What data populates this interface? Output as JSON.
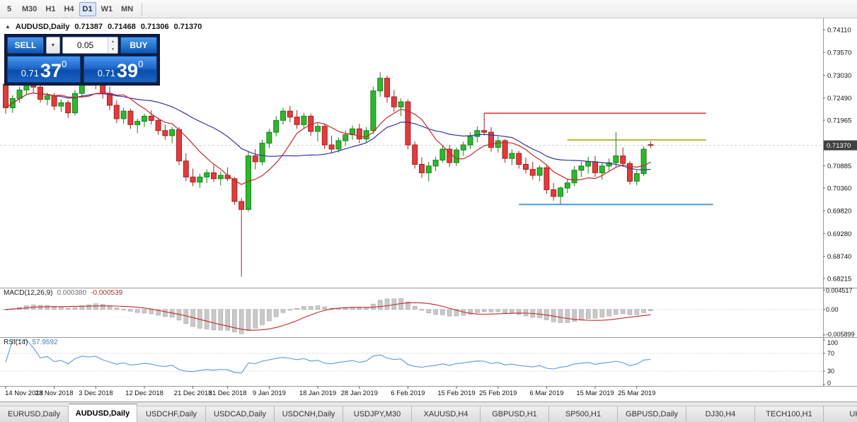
{
  "toolbar": {
    "timeframes": [
      {
        "label": "5",
        "active": false
      },
      {
        "label": "M30",
        "active": false
      },
      {
        "label": "H1",
        "active": false
      },
      {
        "label": "H4",
        "active": false
      },
      {
        "label": "D1",
        "active": true
      },
      {
        "label": "W1",
        "active": false
      },
      {
        "label": "MN",
        "active": false
      }
    ]
  },
  "chart_header": {
    "symbol": "AUDUSD,Daily",
    "open": "0.71387",
    "high": "0.71468",
    "low": "0.71306",
    "close": "0.71370"
  },
  "trade_panel": {
    "sell_label": "SELL",
    "buy_label": "BUY",
    "volume": "0.05",
    "sell_price": {
      "prefix": "0.71",
      "big": "37",
      "sup": "0"
    },
    "buy_price": {
      "prefix": "0.71",
      "big": "39",
      "sup": "0"
    }
  },
  "indicators": {
    "macd": {
      "label": "MACD(12,26,9)",
      "value1": "0.000380",
      "value2": "-0.000539"
    },
    "rsi": {
      "label": "RSI(14)",
      "value": "57.9592"
    }
  },
  "tabs": [
    {
      "label": "EURUSD,Daily",
      "active": false
    },
    {
      "label": "AUDUSD,Daily",
      "active": true
    },
    {
      "label": "USDCHF,Daily",
      "active": false
    },
    {
      "label": "USDCAD,Daily",
      "active": false
    },
    {
      "label": "USDCNH,Daily",
      "active": false
    },
    {
      "label": "USDJPY,M30",
      "active": false
    },
    {
      "label": "XAUUSD,H4",
      "active": false
    },
    {
      "label": "GBPUSD,H1",
      "active": false
    },
    {
      "label": "SP500,H1",
      "active": false
    },
    {
      "label": "GBPUSD,Daily",
      "active": false
    },
    {
      "label": "DJ30,H4",
      "active": false
    },
    {
      "label": "TECH100,H1",
      "active": false
    },
    {
      "label": "UKC",
      "active": false
    }
  ],
  "colors": {
    "bull": "#2db82d",
    "bull_edge": "#1d7f1d",
    "bear": "#e23b3b",
    "bear_edge": "#a32222",
    "ma_fast": "#c62828",
    "ma_slow": "#3434a4",
    "hline_red": "#dd5b5b",
    "hline_olive": "#b5b833",
    "hline_blue": "#4f9bd9",
    "rsi_line": "#5b9bd5",
    "macd_signal": "#c62828",
    "macd_hist": "#c9c9c9",
    "macd_hist_edge": "#9b9b9b",
    "badge_bg": "#404040"
  },
  "chart_data": [
    {
      "type": "candlestick",
      "symbol": "AUDUSD",
      "timeframe": "Daily",
      "y_range": [
        0.68215,
        0.7411
      ],
      "y_ticks": [
        "0.74110",
        "0.73570",
        "0.73030",
        "0.72490",
        "0.71965",
        "0.70885",
        "0.70360",
        "0.69820",
        "0.69280",
        "0.68740",
        "0.68215"
      ],
      "current_price": 0.7137,
      "current_price_label": "0.71370",
      "x_ticks": [
        {
          "label": "14 Nov 2018",
          "i": 0
        },
        {
          "label": "23 Nov 2018",
          "i": 7
        },
        {
          "label": "3 Dec 2018",
          "i": 13
        },
        {
          "label": "12 Dec 2018",
          "i": 20
        },
        {
          "label": "21 Dec 2018",
          "i": 27
        },
        {
          "label": "31 Dec 2018",
          "i": 32
        },
        {
          "label": "9 Jan 2019",
          "i": 38
        },
        {
          "label": "18 Jan 2019",
          "i": 45
        },
        {
          "label": "28 Jan 2019",
          "i": 51
        },
        {
          "label": "6 Feb 2019",
          "i": 58
        },
        {
          "label": "15 Feb 2019",
          "i": 65
        },
        {
          "label": "25 Feb 2019",
          "i": 71
        },
        {
          "label": "6 Mar 2019",
          "i": 78
        },
        {
          "label": "15 Mar 2019",
          "i": 85
        },
        {
          "label": "25 Mar 2019",
          "i": 91
        }
      ],
      "hlines": [
        {
          "price": 0.7213,
          "from": 69,
          "to": 101,
          "color_key": "hline_red"
        },
        {
          "price": 0.715,
          "from": 81,
          "to": 101,
          "color_key": "hline_olive"
        },
        {
          "price": 0.6997,
          "from": 74,
          "to": 102,
          "color_key": "hline_blue"
        }
      ],
      "ma": [
        {
          "period": 21,
          "color_key": "ma_slow"
        },
        {
          "period": 8,
          "color_key": "ma_fast"
        }
      ],
      "ohlc": [
        [
          0.7282,
          0.7293,
          0.7212,
          0.7226
        ],
        [
          0.7226,
          0.7256,
          0.7214,
          0.7248
        ],
        [
          0.7248,
          0.7276,
          0.7238,
          0.7268
        ],
        [
          0.7268,
          0.7294,
          0.7256,
          0.7288
        ],
        [
          0.7288,
          0.7298,
          0.7262,
          0.7275
        ],
        [
          0.7275,
          0.7286,
          0.7238,
          0.7246
        ],
        [
          0.7246,
          0.7262,
          0.7232,
          0.7255
        ],
        [
          0.7255,
          0.7261,
          0.722,
          0.723
        ],
        [
          0.723,
          0.7246,
          0.7216,
          0.7238
        ],
        [
          0.7238,
          0.7244,
          0.7202,
          0.7214
        ],
        [
          0.7214,
          0.7268,
          0.7208,
          0.726
        ],
        [
          0.726,
          0.7304,
          0.725,
          0.7296
        ],
        [
          0.7296,
          0.7308,
          0.7278,
          0.7288
        ],
        [
          0.7288,
          0.7305,
          0.727,
          0.7298
        ],
        [
          0.7298,
          0.7306,
          0.7248,
          0.726
        ],
        [
          0.726,
          0.7276,
          0.722,
          0.7232
        ],
        [
          0.7232,
          0.7244,
          0.719,
          0.72
        ],
        [
          0.72,
          0.7226,
          0.7188,
          0.7218
        ],
        [
          0.7218,
          0.7224,
          0.7176,
          0.7186
        ],
        [
          0.7186,
          0.72,
          0.7166,
          0.7194
        ],
        [
          0.7194,
          0.7212,
          0.718,
          0.7206
        ],
        [
          0.7206,
          0.722,
          0.7186,
          0.7196
        ],
        [
          0.7196,
          0.7202,
          0.7162,
          0.7172
        ],
        [
          0.7172,
          0.7186,
          0.715,
          0.716
        ],
        [
          0.716,
          0.718,
          0.7142,
          0.7174
        ],
        [
          0.7174,
          0.718,
          0.709,
          0.71
        ],
        [
          0.71,
          0.7118,
          0.7052,
          0.7062
        ],
        [
          0.7062,
          0.7082,
          0.704,
          0.705
        ],
        [
          0.705,
          0.707,
          0.7036,
          0.7062
        ],
        [
          0.7062,
          0.708,
          0.7048,
          0.7072
        ],
        [
          0.7072,
          0.709,
          0.705,
          0.7058
        ],
        [
          0.7058,
          0.7075,
          0.7042,
          0.7066
        ],
        [
          0.7066,
          0.7085,
          0.7052,
          0.7058
        ],
        [
          0.7058,
          0.7062,
          0.6996,
          0.7004
        ],
        [
          0.7004,
          0.7012,
          0.6826,
          0.6985
        ],
        [
          0.6985,
          0.7122,
          0.698,
          0.7112
        ],
        [
          0.7112,
          0.7128,
          0.708,
          0.7098
        ],
        [
          0.7098,
          0.715,
          0.709,
          0.7142
        ],
        [
          0.7142,
          0.7176,
          0.713,
          0.7168
        ],
        [
          0.7168,
          0.7206,
          0.7158,
          0.7196
        ],
        [
          0.7196,
          0.7226,
          0.7186,
          0.7218
        ],
        [
          0.7218,
          0.723,
          0.7192,
          0.7204
        ],
        [
          0.7204,
          0.722,
          0.7176,
          0.7186
        ],
        [
          0.7186,
          0.7214,
          0.7178,
          0.7206
        ],
        [
          0.7206,
          0.7212,
          0.716,
          0.717
        ],
        [
          0.717,
          0.719,
          0.7146,
          0.7182
        ],
        [
          0.7182,
          0.7188,
          0.7128,
          0.7138
        ],
        [
          0.7138,
          0.716,
          0.7118,
          0.7128
        ],
        [
          0.7128,
          0.7156,
          0.712,
          0.7148
        ],
        [
          0.7148,
          0.7172,
          0.7136,
          0.7162
        ],
        [
          0.7162,
          0.7184,
          0.715,
          0.7176
        ],
        [
          0.7176,
          0.7188,
          0.7142,
          0.7152
        ],
        [
          0.7152,
          0.718,
          0.7144,
          0.7172
        ],
        [
          0.7172,
          0.7276,
          0.7164,
          0.7266
        ],
        [
          0.7266,
          0.731,
          0.7252,
          0.7296
        ],
        [
          0.7296,
          0.7302,
          0.7238,
          0.7252
        ],
        [
          0.7252,
          0.7268,
          0.7216,
          0.7228
        ],
        [
          0.7228,
          0.7248,
          0.7206,
          0.724
        ],
        [
          0.724,
          0.7246,
          0.7128,
          0.7138
        ],
        [
          0.7138,
          0.7146,
          0.7082,
          0.7092
        ],
        [
          0.7092,
          0.7108,
          0.706,
          0.7072
        ],
        [
          0.7072,
          0.7098,
          0.7052,
          0.7088
        ],
        [
          0.7088,
          0.711,
          0.7076,
          0.7102
        ],
        [
          0.7102,
          0.7136,
          0.7096,
          0.7128
        ],
        [
          0.7128,
          0.7138,
          0.7086,
          0.7096
        ],
        [
          0.7096,
          0.7132,
          0.7088,
          0.7126
        ],
        [
          0.7126,
          0.7146,
          0.7112,
          0.7138
        ],
        [
          0.7138,
          0.7168,
          0.7128,
          0.7158
        ],
        [
          0.7158,
          0.7182,
          0.7144,
          0.7172
        ],
        [
          0.7172,
          0.7213,
          0.716,
          0.7168
        ],
        [
          0.7168,
          0.718,
          0.7122,
          0.7132
        ],
        [
          0.7132,
          0.7158,
          0.712,
          0.7148
        ],
        [
          0.7148,
          0.7152,
          0.7096,
          0.7106
        ],
        [
          0.7106,
          0.7128,
          0.709,
          0.7118
        ],
        [
          0.7118,
          0.7124,
          0.7082,
          0.7092
        ],
        [
          0.7092,
          0.7108,
          0.707,
          0.708
        ],
        [
          0.708,
          0.7098,
          0.7056,
          0.7066
        ],
        [
          0.7066,
          0.709,
          0.7052,
          0.7084
        ],
        [
          0.7084,
          0.7092,
          0.7022,
          0.7032
        ],
        [
          0.7032,
          0.7048,
          0.7006,
          0.7016
        ],
        [
          0.7016,
          0.704,
          0.6998,
          0.7036
        ],
        [
          0.7036,
          0.7058,
          0.7024,
          0.7048
        ],
        [
          0.7048,
          0.7088,
          0.704,
          0.7078
        ],
        [
          0.7078,
          0.7098,
          0.7062,
          0.7088
        ],
        [
          0.7088,
          0.711,
          0.707,
          0.7098
        ],
        [
          0.7098,
          0.7112,
          0.7062,
          0.7072
        ],
        [
          0.7072,
          0.7096,
          0.7056,
          0.7088
        ],
        [
          0.7088,
          0.7106,
          0.7076,
          0.7096
        ],
        [
          0.7096,
          0.7168,
          0.7086,
          0.7112
        ],
        [
          0.7112,
          0.7132,
          0.7086,
          0.7094
        ],
        [
          0.7094,
          0.71,
          0.7044,
          0.7052
        ],
        [
          0.7052,
          0.7078,
          0.7042,
          0.707
        ],
        [
          0.707,
          0.7135,
          0.7064,
          0.7128
        ],
        [
          0.71387,
          0.71468,
          0.71306,
          0.7137
        ]
      ]
    },
    {
      "type": "macd",
      "fast": 12,
      "slow": 26,
      "signal": 9,
      "current_macd": 0.00038,
      "current_signal": -0.000539,
      "range": [
        -0.005899,
        0.004517
      ],
      "axis": [
        "0.004517",
        "0.00",
        "-0.005899"
      ]
    },
    {
      "type": "rsi",
      "period": 14,
      "current": 57.9592,
      "levels": [
        70,
        30
      ],
      "range": [
        0,
        100
      ],
      "axis": [
        "100",
        "70",
        "30",
        "0"
      ]
    }
  ]
}
